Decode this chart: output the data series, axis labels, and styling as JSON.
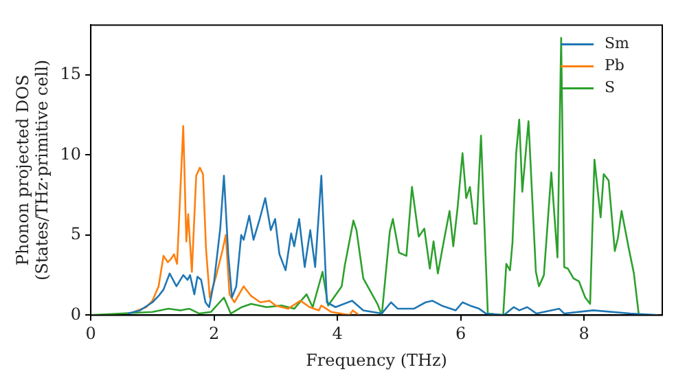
{
  "chart_data": {
    "type": "line",
    "xlabel": "Frequency (THz)",
    "ylabel": "Phonon projected DOS\n(States/THz·primitive cell)",
    "xlim": [
      0,
      9.27
    ],
    "ylim": [
      0,
      18.1
    ],
    "xticks": [
      0,
      2,
      4,
      6,
      8
    ],
    "yticks": [
      0,
      5,
      10,
      15
    ],
    "grid": false,
    "legend": "top right",
    "marker": "none",
    "line_style": "solid",
    "series": [
      {
        "name": "Sm",
        "color": "#1f77b4",
        "x": [
          0.6,
          0.8,
          1.0,
          1.1,
          1.18,
          1.28,
          1.39,
          1.5,
          1.57,
          1.61,
          1.68,
          1.73,
          1.79,
          1.86,
          1.92,
          2.0,
          2.1,
          2.16,
          2.23,
          2.29,
          2.36,
          2.44,
          2.48,
          2.57,
          2.64,
          2.74,
          2.83,
          2.92,
          2.99,
          3.06,
          3.16,
          3.25,
          3.3,
          3.38,
          3.47,
          3.56,
          3.64,
          3.74,
          3.83,
          3.97,
          4.24,
          4.42,
          4.72,
          4.87,
          4.98,
          5.24,
          5.43,
          5.54,
          5.69,
          5.92,
          6.03,
          6.15,
          6.3,
          6.41,
          6.7,
          6.86,
          6.95,
          7.08,
          7.23,
          7.6,
          7.68,
          8.15,
          8.75,
          9.2
        ],
        "values": [
          0.1,
          0.3,
          0.8,
          1.2,
          1.6,
          2.6,
          1.8,
          2.5,
          2.2,
          2.5,
          1.3,
          2.4,
          2.2,
          0.8,
          0.5,
          2.1,
          5.4,
          8.7,
          3.8,
          1.1,
          1.8,
          5.0,
          4.7,
          6.2,
          4.7,
          6.0,
          7.3,
          5.3,
          6.0,
          3.8,
          2.8,
          5.1,
          4.3,
          6.0,
          3.0,
          5.3,
          3.0,
          8.7,
          0.8,
          0.5,
          0.9,
          0.3,
          0.1,
          0.8,
          0.4,
          0.4,
          0.8,
          0.9,
          0.6,
          0.3,
          0.8,
          0.6,
          0.4,
          0.1,
          0,
          0.5,
          0.3,
          0.5,
          0.1,
          0.4,
          0.1,
          0.3,
          0.1,
          0
        ]
      },
      {
        "name": "Pb",
        "color": "#ff7f0e",
        "x": [
          0.7,
          0.9,
          1.0,
          1.1,
          1.18,
          1.25,
          1.3,
          1.35,
          1.4,
          1.5,
          1.55,
          1.58,
          1.64,
          1.71,
          1.77,
          1.82,
          1.87,
          1.93,
          2.03,
          2.14,
          2.19,
          2.25,
          2.33,
          2.48,
          2.6,
          2.75,
          2.9,
          3.0,
          3.2,
          3.4,
          3.55,
          3.7,
          3.74,
          3.9,
          4.2,
          4.25,
          4.35
        ],
        "values": [
          0.2,
          0.5,
          0.9,
          1.8,
          3.7,
          3.3,
          3.5,
          3.8,
          3.2,
          11.8,
          4.6,
          6.3,
          2.7,
          8.7,
          9.2,
          8.8,
          4.1,
          1.1,
          2.4,
          4.1,
          5.0,
          1.3,
          0.8,
          1.8,
          1.2,
          0.8,
          0.9,
          0.6,
          0.4,
          0.9,
          0.5,
          0.3,
          0.6,
          0.2,
          0,
          0.3,
          0
        ]
      },
      {
        "name": "S",
        "color": "#2ca02c",
        "x": [
          0,
          0.5,
          1.0,
          1.26,
          1.45,
          1.6,
          1.76,
          1.95,
          2.16,
          2.27,
          2.45,
          2.6,
          2.85,
          3.1,
          3.3,
          3.5,
          3.6,
          3.76,
          3.85,
          4.07,
          4.12,
          4.26,
          4.31,
          4.42,
          4.65,
          4.72,
          4.85,
          4.9,
          5.0,
          5.12,
          5.21,
          5.32,
          5.41,
          5.5,
          5.56,
          5.63,
          5.74,
          5.82,
          5.88,
          5.95,
          6.03,
          6.09,
          6.15,
          6.22,
          6.26,
          6.33,
          6.44,
          6.69,
          6.74,
          6.8,
          6.84,
          6.9,
          6.95,
          7.0,
          7.1,
          7.22,
          7.27,
          7.35,
          7.47,
          7.57,
          7.63,
          7.68,
          7.74,
          7.83,
          7.92,
          8.02,
          8.1,
          8.17,
          8.27,
          8.32,
          8.4,
          8.5,
          8.55,
          8.61,
          8.73,
          8.81,
          8.89,
          9.2
        ],
        "values": [
          0,
          0.1,
          0.2,
          0.4,
          0.3,
          0.4,
          0.1,
          0.2,
          1.1,
          0.1,
          0.5,
          0.7,
          0.5,
          0.6,
          0.4,
          1.3,
          0.5,
          2.7,
          0.6,
          1.8,
          3.1,
          5.9,
          5.3,
          2.3,
          0.7,
          0,
          5.2,
          6.0,
          3.9,
          3.7,
          8.0,
          4.9,
          5.4,
          2.9,
          4.6,
          2.6,
          4.9,
          6.5,
          4.3,
          6.7,
          10.1,
          7.3,
          8.0,
          5.7,
          5.7,
          11.2,
          0.1,
          0,
          3.2,
          2.8,
          4.5,
          10.1,
          12.2,
          7.7,
          12.1,
          2.7,
          1.8,
          2.5,
          8.9,
          3.6,
          17.3,
          3.0,
          2.9,
          2.3,
          2.1,
          1.1,
          0.7,
          9.7,
          6.1,
          8.8,
          8.4,
          4.0,
          4.8,
          6.5,
          4.1,
          2.6,
          0,
          0
        ]
      }
    ]
  }
}
